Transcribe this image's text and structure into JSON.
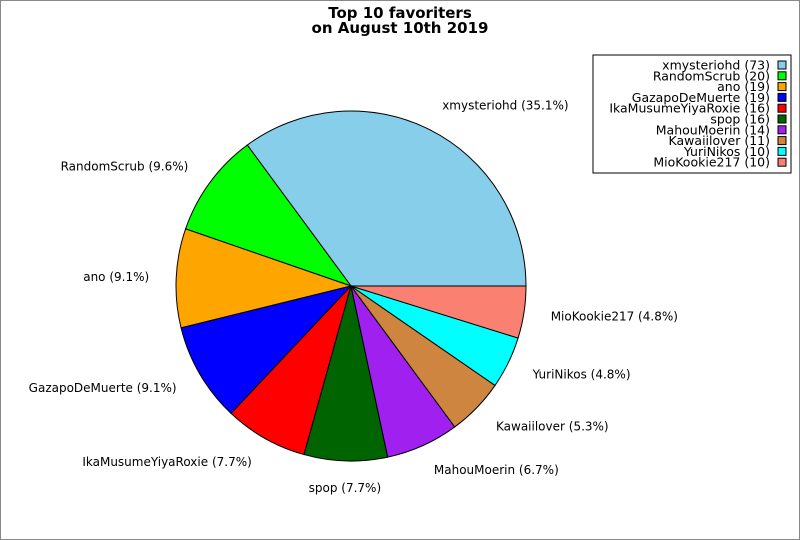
{
  "chart_data": {
    "type": "pie",
    "title": [
      "Top 10 favoriters",
      "on August 10th 2019"
    ],
    "slices": [
      {
        "name": "xmysteriohd",
        "value": 73,
        "percent_label": "xmysteriohd (35.1%)",
        "legend_label": "xmysteriohd (73)",
        "color": "#87ceeb"
      },
      {
        "name": "RandomScrub",
        "value": 20,
        "percent_label": "RandomScrub (9.6%)",
        "legend_label": "RandomScrub (20)",
        "color": "#00ff00"
      },
      {
        "name": "ano",
        "value": 19,
        "percent_label": "ano (9.1%)",
        "legend_label": "ano (19)",
        "color": "#ffa500"
      },
      {
        "name": "GazapoDeMuerte",
        "value": 19,
        "percent_label": "GazapoDeMuerte (9.1%)",
        "legend_label": "GazapoDeMuerte (19)",
        "color": "#0000ff"
      },
      {
        "name": "IkaMusumeYiyaRoxie",
        "value": 16,
        "percent_label": "IkaMusumeYiyaRoxie (7.7%)",
        "legend_label": "IkaMusumeYiyaRoxie (16)",
        "color": "#ff0000"
      },
      {
        "name": "spop",
        "value": 16,
        "percent_label": "spop (7.7%)",
        "legend_label": "spop (16)",
        "color": "#006400"
      },
      {
        "name": "MahouMoerin",
        "value": 14,
        "percent_label": "MahouMoerin (6.7%)",
        "legend_label": "MahouMoerin (14)",
        "color": "#a020f0"
      },
      {
        "name": "Kawaiilover",
        "value": 11,
        "percent_label": "Kawaiilover (5.3%)",
        "legend_label": "Kawaiilover (11)",
        "color": "#cd853f"
      },
      {
        "name": "YuriNikos",
        "value": 10,
        "percent_label": "YuriNikos (4.8%)",
        "legend_label": "YuriNikos (10)",
        "color": "#00ffff"
      },
      {
        "name": "MioKookie217",
        "value": 10,
        "percent_label": "MioKookie217 (4.8%)",
        "legend_label": "MioKookie217 (10)",
        "color": "#fa8072"
      }
    ],
    "start": "right (3 o'clock), counter-clockwise",
    "legend_position": "top-right"
  }
}
